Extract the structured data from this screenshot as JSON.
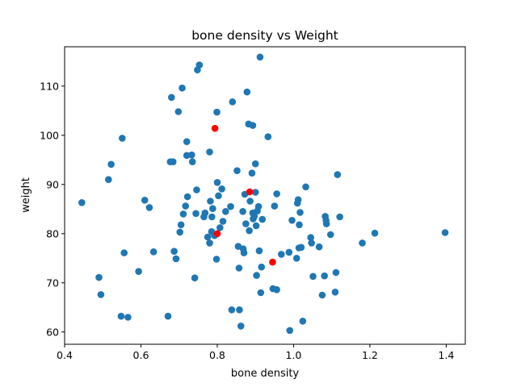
{
  "chart_data": {
    "type": "scatter",
    "title": "bone density vs Weight",
    "xlabel": "bone density",
    "ylabel": "weight",
    "xlim": [
      0.4,
      1.45
    ],
    "ylim": [
      57.5,
      118
    ],
    "xticks": [
      0.4,
      0.6,
      0.8,
      1.0,
      1.2,
      1.4
    ],
    "xtick_labels": [
      "0.4",
      "0.6",
      "0.8",
      "1.0",
      "1.2",
      "1.4"
    ],
    "yticks": [
      60,
      70,
      80,
      90,
      100,
      110
    ],
    "ytick_labels": [
      "60",
      "70",
      "80",
      "90",
      "100",
      "110"
    ],
    "grid": false,
    "series": [
      {
        "color": "#1f77b4",
        "points": [
          [
            0.445,
            86.3
          ],
          [
            0.49,
            71.1
          ],
          [
            0.495,
            67.6
          ],
          [
            0.515,
            91.0
          ],
          [
            0.522,
            94.1
          ],
          [
            0.548,
            63.2
          ],
          [
            0.551,
            99.4
          ],
          [
            0.556,
            76.1
          ],
          [
            0.566,
            63.0
          ],
          [
            0.594,
            72.3
          ],
          [
            0.61,
            86.8
          ],
          [
            0.622,
            85.3
          ],
          [
            0.633,
            76.3
          ],
          [
            0.671,
            63.2
          ],
          [
            0.677,
            94.6
          ],
          [
            0.68,
            107.7
          ],
          [
            0.684,
            94.6
          ],
          [
            0.687,
            76.4
          ],
          [
            0.692,
            74.9
          ],
          [
            0.698,
            104.8
          ],
          [
            0.702,
            80.3
          ],
          [
            0.705,
            81.8
          ],
          [
            0.708,
            109.6
          ],
          [
            0.711,
            84.0
          ],
          [
            0.717,
            85.6
          ],
          [
            0.72,
            95.9
          ],
          [
            0.72,
            98.7
          ],
          [
            0.722,
            87.5
          ],
          [
            0.733,
            96.0
          ],
          [
            0.735,
            94.6
          ],
          [
            0.741,
            71.0
          ],
          [
            0.744,
            84.1
          ],
          [
            0.746,
            88.9
          ],
          [
            0.748,
            113.3
          ],
          [
            0.753,
            114.3
          ],
          [
            0.765,
            83.4
          ],
          [
            0.768,
            84.2
          ],
          [
            0.775,
            79.3
          ],
          [
            0.78,
            96.6
          ],
          [
            0.78,
            78.1
          ],
          [
            0.782,
            86.6
          ],
          [
            0.785,
            80.4
          ],
          [
            0.786,
            83.4
          ],
          [
            0.788,
            85.1
          ],
          [
            0.793,
            79.6
          ],
          [
            0.798,
            74.8
          ],
          [
            0.799,
            104.7
          ],
          [
            0.8,
            90.4
          ],
          [
            0.803,
            87.7
          ],
          [
            0.807,
            81.2
          ],
          [
            0.812,
            89.1
          ],
          [
            0.815,
            82.5
          ],
          [
            0.822,
            84.5
          ],
          [
            0.835,
            85.5
          ],
          [
            0.838,
            64.5
          ],
          [
            0.84,
            106.8
          ],
          [
            0.852,
            92.8
          ],
          [
            0.855,
            77.4
          ],
          [
            0.857,
            73.0
          ],
          [
            0.858,
            64.5
          ],
          [
            0.862,
            61.2
          ],
          [
            0.867,
            84.5
          ],
          [
            0.868,
            76.9
          ],
          [
            0.87,
            76.1
          ],
          [
            0.872,
            88.0
          ],
          [
            0.875,
            82.0
          ],
          [
            0.878,
            108.8
          ],
          [
            0.882,
            102.3
          ],
          [
            0.884,
            80.6
          ],
          [
            0.886,
            86.6
          ],
          [
            0.891,
            92.3
          ],
          [
            0.893,
            102.0
          ],
          [
            0.893,
            84.2
          ],
          [
            0.894,
            83.0
          ],
          [
            0.897,
            83.5
          ],
          [
            0.9,
            94.2
          ],
          [
            0.9,
            88.4
          ],
          [
            0.902,
            81.6
          ],
          [
            0.903,
            71.5
          ],
          [
            0.905,
            84.6
          ],
          [
            0.908,
            85.5
          ],
          [
            0.91,
            76.5
          ],
          [
            0.912,
            115.9
          ],
          [
            0.914,
            68.0
          ],
          [
            0.916,
            73.2
          ],
          [
            0.918,
            82.9
          ],
          [
            0.933,
            99.7
          ],
          [
            0.946,
            68.8
          ],
          [
            0.95,
            85.6
          ],
          [
            0.956,
            88.1
          ],
          [
            0.956,
            68.6
          ],
          [
            0.968,
            75.8
          ],
          [
            0.99,
            60.3
          ],
          [
            0.988,
            76.2
          ],
          [
            0.996,
            82.7
          ],
          [
            1.008,
            75.0
          ],
          [
            1.01,
            86.2
          ],
          [
            1.012,
            86.9
          ],
          [
            1.014,
            77.1
          ],
          [
            1.015,
            81.8
          ],
          [
            1.017,
            84.3
          ],
          [
            1.02,
            77.2
          ],
          [
            1.024,
            62.2
          ],
          [
            1.032,
            89.5
          ],
          [
            1.045,
            79.2
          ],
          [
            1.047,
            78.1
          ],
          [
            1.051,
            71.3
          ],
          [
            1.067,
            77.3
          ],
          [
            1.075,
            67.5
          ],
          [
            1.081,
            71.4
          ],
          [
            1.083,
            83.5
          ],
          [
            1.085,
            82.7
          ],
          [
            1.086,
            82.0
          ],
          [
            1.097,
            79.8
          ],
          [
            1.109,
            68.1
          ],
          [
            1.111,
            72.1
          ],
          [
            1.115,
            92.0
          ],
          [
            1.121,
            83.4
          ],
          [
            1.18,
            78.1
          ],
          [
            1.213,
            80.1
          ],
          [
            1.397,
            80.2
          ]
        ]
      },
      {
        "color": "#ff0000",
        "points": [
          [
            0.794,
            101.4
          ],
          [
            0.8,
            80.0
          ],
          [
            0.885,
            88.5
          ],
          [
            0.945,
            74.2
          ]
        ]
      }
    ]
  }
}
